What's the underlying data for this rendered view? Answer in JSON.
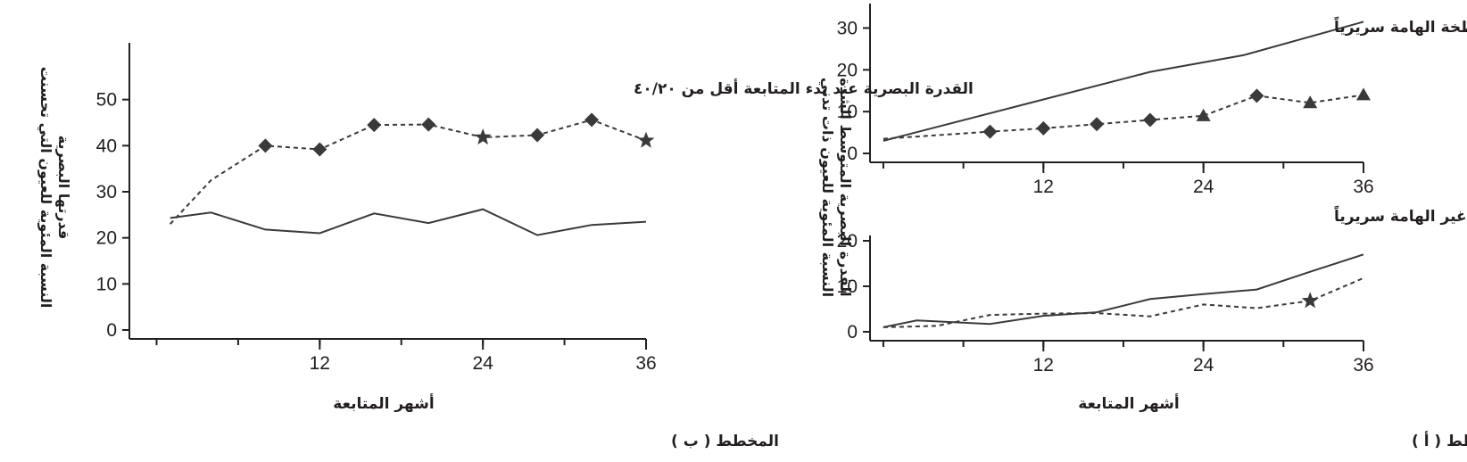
{
  "chart_data": [
    {
      "id": "b",
      "type": "line",
      "caption": "المخطط ( ب )",
      "annotation": "القدرة البصرية عند بدء المتابعة أقل من ٤٠/٢٠",
      "xlabel": "أشهر المتابعة",
      "ylabel_lines": [
        "النسبة المئوية للعيون التي تحسنت",
        "قدرتها البصرية"
      ],
      "xlim": [
        -2,
        36
      ],
      "ylim": [
        0,
        60
      ],
      "xticks": [
        12,
        24,
        36
      ],
      "yticks": [
        0,
        10,
        20,
        30,
        40,
        50
      ],
      "series": [
        {
          "style": "dashed",
          "x": [
            1,
            4,
            8,
            12,
            16,
            20,
            24,
            28,
            32,
            36
          ],
          "y": [
            23,
            32.5,
            40,
            39.2,
            44.5,
            44.6,
            41.8,
            42.3,
            45.6,
            41.1
          ],
          "markers": [
            "none",
            "none",
            "diamond",
            "diamond",
            "diamond",
            "diamond",
            "star",
            "diamond",
            "diamond",
            "star"
          ]
        },
        {
          "style": "solid",
          "x": [
            1,
            4,
            8,
            12,
            16,
            20,
            24,
            28,
            32,
            36
          ],
          "y": [
            24.3,
            25.5,
            21.8,
            21,
            25.3,
            23.2,
            26.2,
            20.6,
            22.8,
            23.5
          ]
        }
      ]
    },
    {
      "id": "a-top",
      "type": "line",
      "caption": "المخطط ( أ )",
      "annotation": "وذمة اللطخة الهامة سريرياً",
      "ylabel_lines": [
        "النسبة المئوية للعيون ذات تدني",
        "القدرة البصرية المتوسط الشدة"
      ],
      "xlim": [
        -1,
        36
      ],
      "ylim": [
        0,
        35
      ],
      "xticks": [
        12,
        24,
        36
      ],
      "yticks": [
        0,
        10,
        20,
        30
      ],
      "series": [
        {
          "style": "solid",
          "x": [
            0,
            20,
            27,
            36
          ],
          "y": [
            3,
            19.5,
            23.5,
            31.5
          ]
        },
        {
          "style": "dashed",
          "x": [
            0,
            8,
            12,
            16,
            20,
            24,
            28,
            32,
            36
          ],
          "y": [
            3.5,
            5.2,
            6,
            7,
            8,
            9,
            13.8,
            12.1,
            14
          ],
          "markers": [
            "none",
            "diamond",
            "diamond",
            "diamond",
            "diamond",
            "triangle",
            "diamond",
            "triangle",
            "triangle"
          ]
        }
      ]
    },
    {
      "id": "a-bottom",
      "type": "line",
      "annotation": "وذمة اللطخة غير الهامة سريرياً",
      "xlabel": "أشهر المتابعة",
      "xlim": [
        -1,
        36
      ],
      "ylim": [
        0,
        20
      ],
      "xticks": [
        12,
        24,
        36
      ],
      "yticks": [
        0,
        10,
        20
      ],
      "series": [
        {
          "style": "solid",
          "x": [
            0,
            2.5,
            8,
            12,
            16,
            20,
            24,
            28,
            32,
            36
          ],
          "y": [
            1,
            2.5,
            1.7,
            3.5,
            4.3,
            7.2,
            8.3,
            9.3,
            13.2,
            17
          ]
        },
        {
          "style": "dashed",
          "x": [
            0,
            4,
            8,
            12,
            16,
            20,
            24,
            28,
            32,
            36
          ],
          "y": [
            1,
            1.3,
            3.7,
            4,
            4.1,
            3.4,
            6,
            5.2,
            6.8,
            11.8
          ],
          "markers": [
            "none",
            "none",
            "none",
            "none",
            "none",
            "none",
            "none",
            "none",
            "star",
            "none"
          ]
        }
      ]
    }
  ]
}
